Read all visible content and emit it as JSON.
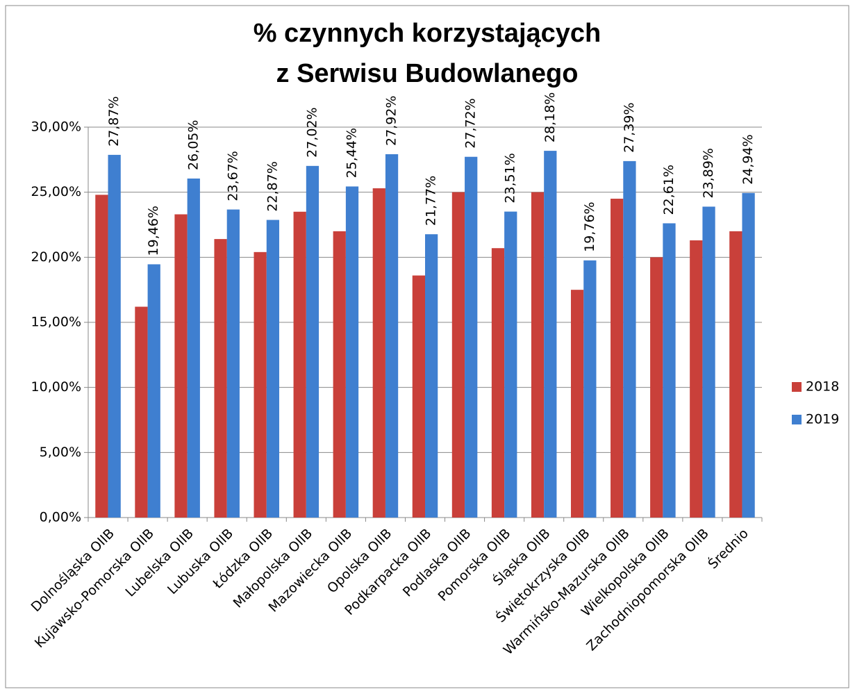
{
  "chart_data": {
    "type": "bar",
    "title": [
      "% czynnych korzystających",
      "z Serwisu Budowlanego"
    ],
    "categories": [
      "Dolnośląska OIIB",
      "Kujawsko-Pomorska OIIB",
      "Lubelska OIIB",
      "Lubuska OIIB",
      "Łódzka OIIB",
      "Małopolska OIIB",
      "Mazowiecka OIIB",
      "Opolska OIIB",
      "Podkarpacka OIIB",
      "Podlaska OIIB",
      "Pomorska OIIB",
      "Śląska OIIB",
      "Świętokrzyska OIIB",
      "Warmińsko-Mazurska OIIB",
      "Wielkopolska OIIB",
      "Zachodniopomorska OIIB",
      "Średnio"
    ],
    "series": [
      {
        "name": "2018",
        "color": "#c9403a",
        "values": [
          24.8,
          16.2,
          23.3,
          21.4,
          20.4,
          23.5,
          22.0,
          25.3,
          18.6,
          25.0,
          20.7,
          25.0,
          17.5,
          24.5,
          20.0,
          21.3,
          22.0
        ]
      },
      {
        "name": "2019",
        "color": "#3f7fd0",
        "values": [
          27.87,
          19.46,
          26.05,
          23.67,
          22.87,
          27.02,
          25.44,
          27.92,
          21.77,
          27.72,
          23.51,
          28.18,
          19.76,
          27.39,
          22.61,
          23.89,
          24.94
        ],
        "value_labels": [
          "27,87%",
          "19,46%",
          "26,05%",
          "23,67%",
          "22,87%",
          "27,02%",
          "25,44%",
          "27,92%",
          "21,77%",
          "27,72%",
          "23,51%",
          "28,18%",
          "19,76%",
          "27,39%",
          "22,61%",
          "23,89%",
          "24,94%"
        ]
      }
    ],
    "ylim": [
      0,
      30
    ],
    "yticks": [
      {
        "value": 0,
        "label": "0,00%"
      },
      {
        "value": 5,
        "label": "5,00%"
      },
      {
        "value": 10,
        "label": "10,00%"
      },
      {
        "value": 15,
        "label": "15,00%"
      },
      {
        "value": 20,
        "label": "20,00%"
      },
      {
        "value": 25,
        "label": "25,00%"
      },
      {
        "value": 30,
        "label": "30,00%"
      }
    ],
    "grid": true,
    "legend": "right"
  }
}
